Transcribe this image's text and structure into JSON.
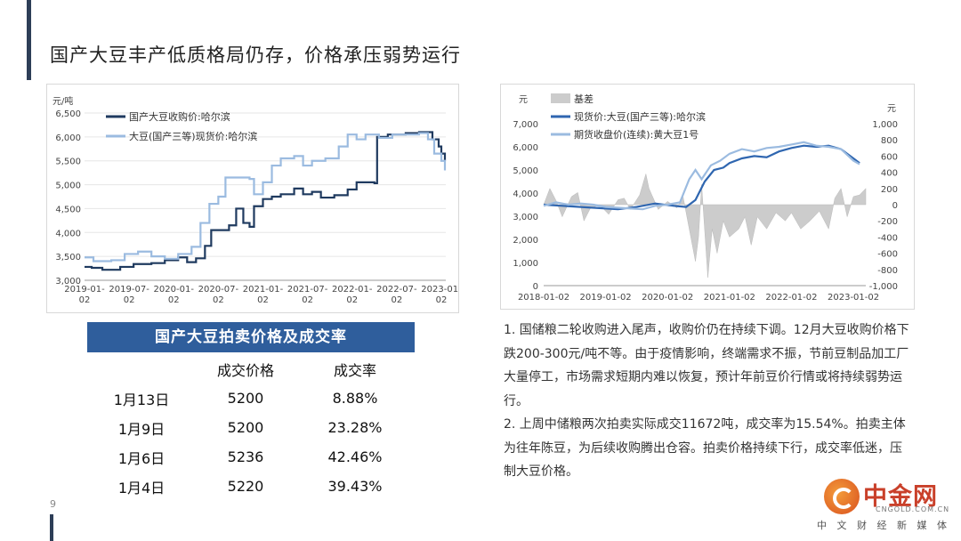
{
  "page": {
    "title": "国产大豆丰产低质格局仍存，价格承压弱势运行",
    "page_number": "9"
  },
  "auction_table": {
    "title": "国产大豆拍卖价格及成交率",
    "headers": [
      "",
      "成交价格",
      "成交率"
    ],
    "rows": [
      {
        "date": "1月13日",
        "price": "5200",
        "rate": "8.88%"
      },
      {
        "date": "1月9日",
        "price": "5200",
        "rate": "23.28%"
      },
      {
        "date": "1月6日",
        "price": "5236",
        "rate": "42.46%"
      },
      {
        "date": "1月4日",
        "price": "5220",
        "rate": "39.43%"
      }
    ]
  },
  "notes": [
    "1. 国储粮二轮收购进入尾声，收购价仍在持续下调。12月大豆收购价格下跌200-300元/吨不等。由于疫情影响，终端需求不振，节前豆制品加工厂大量停工，市场需求短期内难以恢复，预计年前豆价行情或将持续弱势运行。",
    "2. 上周中储粮两次拍卖实际成交11672吨，成交率为15.54%。拍卖主体为往年陈豆，为后续收购腾出仓容。拍卖价格持续下行，成交率低迷，压制大豆价格。"
  ],
  "logo": {
    "name": "中金网",
    "url": "CNGOLD.COM.CN",
    "slogan": "中 文 财 经 新 媒 体"
  },
  "chart_data": [
    {
      "type": "line",
      "ylabel": "元/吨",
      "ylim": [
        3000,
        6500
      ],
      "yticks": [
        "3,000",
        "3,500",
        "4,000",
        "4,500",
        "5,000",
        "5,500",
        "6,000",
        "6,500"
      ],
      "xticks": [
        "2019-01-02",
        "2019-07-02",
        "2020-01-02",
        "2020-07-02",
        "2021-01-02",
        "2021-07-02",
        "2022-01-02",
        "2022-07-02",
        "2023-01-02"
      ],
      "x_range": [
        2019.0,
        2023.05
      ],
      "legend_position": "top-left",
      "series": [
        {
          "name": "国产大豆收购价:哈尔滨",
          "color": "#1f3a5f",
          "points": [
            [
              2019.0,
              3280
            ],
            [
              2019.08,
              3260
            ],
            [
              2019.2,
              3220
            ],
            [
              2019.4,
              3280
            ],
            [
              2019.55,
              3340
            ],
            [
              2019.75,
              3360
            ],
            [
              2019.9,
              3420
            ],
            [
              2020.05,
              3480
            ],
            [
              2020.15,
              3380
            ],
            [
              2020.25,
              3460
            ],
            [
              2020.35,
              3720
            ],
            [
              2020.42,
              4050
            ],
            [
              2020.55,
              4050
            ],
            [
              2020.62,
              4150
            ],
            [
              2020.7,
              4500
            ],
            [
              2020.78,
              4200
            ],
            [
              2020.85,
              4120
            ],
            [
              2020.9,
              4550
            ],
            [
              2021.0,
              4700
            ],
            [
              2021.1,
              4750
            ],
            [
              2021.2,
              4800
            ],
            [
              2021.35,
              4920
            ],
            [
              2021.45,
              4800
            ],
            [
              2021.55,
              4850
            ],
            [
              2021.65,
              4730
            ],
            [
              2021.8,
              4780
            ],
            [
              2021.95,
              4900
            ],
            [
              2022.05,
              5050
            ],
            [
              2022.25,
              5030
            ],
            [
              2022.28,
              6000
            ],
            [
              2022.4,
              6050
            ],
            [
              2022.6,
              6080
            ],
            [
              2022.75,
              6100
            ],
            [
              2022.85,
              6100
            ],
            [
              2022.9,
              5950
            ],
            [
              2022.97,
              5800
            ],
            [
              2023.0,
              5650
            ],
            [
              2023.04,
              5500
            ]
          ]
        },
        {
          "name": "大豆(国产三等)现货价:哈尔滨",
          "color": "#9bbbe0",
          "points": [
            [
              2019.0,
              3480
            ],
            [
              2019.1,
              3400
            ],
            [
              2019.3,
              3420
            ],
            [
              2019.45,
              3550
            ],
            [
              2019.6,
              3600
            ],
            [
              2019.75,
              3500
            ],
            [
              2019.9,
              3450
            ],
            [
              2020.05,
              3550
            ],
            [
              2020.2,
              3700
            ],
            [
              2020.3,
              4200
            ],
            [
              2020.4,
              4600
            ],
            [
              2020.5,
              4750
            ],
            [
              2020.58,
              5150
            ],
            [
              2020.7,
              5150
            ],
            [
              2020.85,
              5120
            ],
            [
              2020.9,
              4800
            ],
            [
              2021.0,
              5050
            ],
            [
              2021.1,
              5400
            ],
            [
              2021.2,
              5550
            ],
            [
              2021.35,
              5600
            ],
            [
              2021.45,
              5400
            ],
            [
              2021.55,
              5500
            ],
            [
              2021.7,
              5550
            ],
            [
              2021.85,
              5800
            ],
            [
              2021.95,
              6050
            ],
            [
              2022.05,
              5950
            ],
            [
              2022.15,
              6050
            ],
            [
              2022.3,
              5980
            ],
            [
              2022.45,
              6050
            ],
            [
              2022.6,
              6050
            ],
            [
              2022.75,
              6080
            ],
            [
              2022.85,
              5950
            ],
            [
              2022.92,
              5650
            ],
            [
              2023.0,
              5500
            ],
            [
              2023.04,
              5300
            ]
          ]
        }
      ]
    },
    {
      "type": "line",
      "ylabel": "元",
      "y2label": "元",
      "ylim": [
        0,
        7000
      ],
      "y2lim": [
        -1000,
        1000
      ],
      "yticks": [
        "0",
        "1,000",
        "2,000",
        "3,000",
        "4,000",
        "5,000",
        "6,000",
        "7,000"
      ],
      "y2ticks": [
        "-1,000",
        "-800",
        "-600",
        "-400",
        "-200",
        "0",
        "200",
        "400",
        "600",
        "800",
        "1,000"
      ],
      "xticks": [
        "2018-01-02",
        "2019-01-02",
        "2020-01-02",
        "2021-01-02",
        "2022-01-02",
        "2023-01-02"
      ],
      "x_range": [
        2018.0,
        2023.2
      ],
      "legend_position": "top-left",
      "series": [
        {
          "name": "基差",
          "color": "#cccccc",
          "axis": "right",
          "kind": "area",
          "points": [
            [
              2018.0,
              0
            ],
            [
              2018.1,
              200
            ],
            [
              2018.2,
              50
            ],
            [
              2018.3,
              -150
            ],
            [
              2018.45,
              100
            ],
            [
              2018.55,
              150
            ],
            [
              2018.65,
              -200
            ],
            [
              2018.75,
              -50
            ],
            [
              2018.9,
              0
            ],
            [
              2019.05,
              -120
            ],
            [
              2019.2,
              60
            ],
            [
              2019.3,
              80
            ],
            [
              2019.4,
              -60
            ],
            [
              2019.55,
              120
            ],
            [
              2019.65,
              380
            ],
            [
              2019.7,
              200
            ],
            [
              2019.85,
              -60
            ],
            [
              2020.0,
              40
            ],
            [
              2020.15,
              -40
            ],
            [
              2020.25,
              100
            ],
            [
              2020.35,
              -300
            ],
            [
              2020.45,
              -700
            ],
            [
              2020.5,
              -400
            ],
            [
              2020.55,
              250
            ],
            [
              2020.65,
              -900
            ],
            [
              2020.72,
              -300
            ],
            [
              2020.8,
              -600
            ],
            [
              2020.9,
              -200
            ],
            [
              2021.0,
              -400
            ],
            [
              2021.15,
              -300
            ],
            [
              2021.25,
              -150
            ],
            [
              2021.35,
              -500
            ],
            [
              2021.45,
              -150
            ],
            [
              2021.6,
              -300
            ],
            [
              2021.75,
              -100
            ],
            [
              2021.9,
              -200
            ],
            [
              2022.0,
              -100
            ],
            [
              2022.15,
              -300
            ],
            [
              2022.3,
              -200
            ],
            [
              2022.45,
              -80
            ],
            [
              2022.6,
              -300
            ],
            [
              2022.7,
              80
            ],
            [
              2022.8,
              200
            ],
            [
              2022.9,
              -150
            ],
            [
              2023.0,
              100
            ],
            [
              2023.1,
              120
            ],
            [
              2023.2,
              200
            ]
          ]
        },
        {
          "name": "现货价:大豆(国产三等):哈尔滨",
          "color": "#2f66b0",
          "axis": "left",
          "points": [
            [
              2018.0,
              3500
            ],
            [
              2018.3,
              3450
            ],
            [
              2018.6,
              3400
            ],
            [
              2018.9,
              3350
            ],
            [
              2019.2,
              3300
            ],
            [
              2019.5,
              3400
            ],
            [
              2019.8,
              3550
            ],
            [
              2020.1,
              3450
            ],
            [
              2020.3,
              3400
            ],
            [
              2020.45,
              3700
            ],
            [
              2020.6,
              4500
            ],
            [
              2020.75,
              5000
            ],
            [
              2020.9,
              5100
            ],
            [
              2021.0,
              5300
            ],
            [
              2021.2,
              5500
            ],
            [
              2021.4,
              5600
            ],
            [
              2021.6,
              5550
            ],
            [
              2021.8,
              5800
            ],
            [
              2022.0,
              5950
            ],
            [
              2022.2,
              6050
            ],
            [
              2022.4,
              6000
            ],
            [
              2022.6,
              6050
            ],
            [
              2022.8,
              5900
            ],
            [
              2023.0,
              5500
            ],
            [
              2023.1,
              5300
            ]
          ]
        },
        {
          "name": "期货收盘价(连续):黄大豆1号",
          "color": "#9bbbe0",
          "axis": "left",
          "points": [
            [
              2018.0,
              3450
            ],
            [
              2018.2,
              3600
            ],
            [
              2018.4,
              3500
            ],
            [
              2018.6,
              3550
            ],
            [
              2018.8,
              3500
            ],
            [
              2019.0,
              3400
            ],
            [
              2019.3,
              3350
            ],
            [
              2019.6,
              3300
            ],
            [
              2019.8,
              3450
            ],
            [
              2020.0,
              3500
            ],
            [
              2020.2,
              3600
            ],
            [
              2020.35,
              4600
            ],
            [
              2020.45,
              5000
            ],
            [
              2020.55,
              4600
            ],
            [
              2020.7,
              5200
            ],
            [
              2020.85,
              5400
            ],
            [
              2021.0,
              5700
            ],
            [
              2021.2,
              5900
            ],
            [
              2021.4,
              5800
            ],
            [
              2021.6,
              5950
            ],
            [
              2021.8,
              6000
            ],
            [
              2022.0,
              6100
            ],
            [
              2022.2,
              6200
            ],
            [
              2022.4,
              6050
            ],
            [
              2022.6,
              6000
            ],
            [
              2022.8,
              5900
            ],
            [
              2023.0,
              5400
            ],
            [
              2023.1,
              5250
            ]
          ]
        }
      ]
    }
  ]
}
